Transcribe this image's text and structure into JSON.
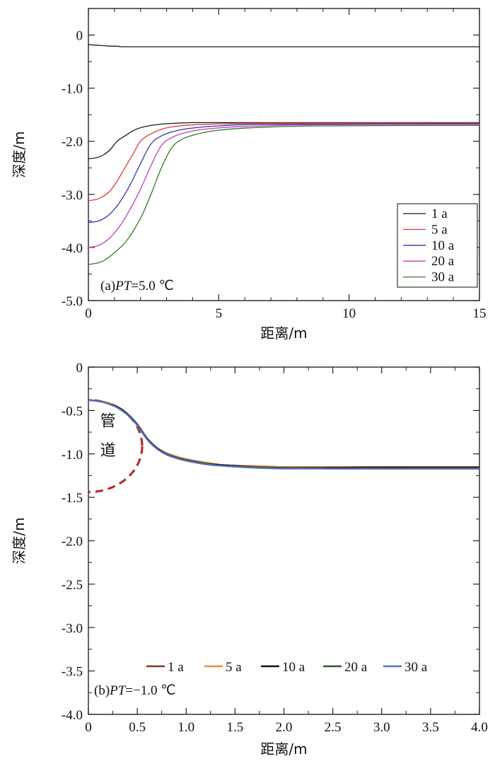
{
  "chart_data": [
    {
      "type": "line",
      "panel_label": "(a)PT=5.0 ℃",
      "panel_label_parts": [
        "(a)",
        "PT",
        "=5.0 ℃"
      ],
      "xlabel": "距离/m",
      "ylabel": "深度/m",
      "xlim": [
        0,
        15
      ],
      "ylim": [
        -5.0,
        0.5
      ],
      "x_ticks": [
        0,
        5,
        10,
        15
      ],
      "x_tick_labels": [
        "0",
        "5",
        "10",
        "15"
      ],
      "y_ticks": [
        0,
        -1.0,
        -2.0,
        -3.0,
        -4.0,
        -5.0
      ],
      "y_tick_labels": [
        "0",
        "-1.0",
        "-2.0",
        "-3.0",
        "-4.0",
        "-5.0"
      ],
      "grid": false,
      "legend_position": "bottom-right",
      "series": [
        {
          "name": "1 a",
          "color": "#1a1a1a",
          "x": [
            0,
            0.3,
            0.6,
            0.9,
            1.1,
            1.3,
            2,
            4,
            8,
            15
          ],
          "y": [
            -0.18,
            -0.19,
            -0.2,
            -0.21,
            -0.21,
            -0.22,
            -0.22,
            -0.22,
            -0.22,
            -0.22
          ]
        },
        {
          "name": "1 a",
          "color": "#1a1a1a",
          "x": [
            0,
            0.3,
            0.6,
            0.85,
            1.1,
            1.4,
            1.8,
            2.3,
            3,
            4,
            6,
            10,
            15
          ],
          "y": [
            -2.33,
            -2.31,
            -2.25,
            -2.15,
            -2.0,
            -1.9,
            -1.78,
            -1.71,
            -1.67,
            -1.65,
            -1.65,
            -1.65,
            -1.65
          ]
        },
        {
          "name": "5 a",
          "color": "#e03a3a",
          "x": [
            0,
            0.4,
            0.8,
            1.1,
            1.4,
            1.7,
            2.0,
            2.4,
            2.9,
            3.5,
            4.5,
            7,
            15
          ],
          "y": [
            -3.12,
            -3.08,
            -2.95,
            -2.75,
            -2.5,
            -2.25,
            -2.0,
            -1.86,
            -1.76,
            -1.71,
            -1.68,
            -1.66,
            -1.66
          ]
        },
        {
          "name": "10 a",
          "color": "#3535a8",
          "x": [
            0,
            0.4,
            0.8,
            1.2,
            1.6,
            2.0,
            2.4,
            2.8,
            3.3,
            4.0,
            5.0,
            7,
            15
          ],
          "y": [
            -3.53,
            -3.5,
            -3.38,
            -3.15,
            -2.82,
            -2.42,
            -2.05,
            -1.9,
            -1.81,
            -1.75,
            -1.71,
            -1.68,
            -1.67
          ]
        },
        {
          "name": "20 a",
          "color": "#c040c0",
          "x": [
            0,
            0.4,
            0.8,
            1.2,
            1.6,
            2.0,
            2.4,
            2.8,
            3.2,
            3.7,
            4.5,
            6,
            9,
            15
          ],
          "y": [
            -4.0,
            -3.96,
            -3.83,
            -3.6,
            -3.28,
            -2.9,
            -2.46,
            -2.08,
            -1.93,
            -1.84,
            -1.77,
            -1.72,
            -1.69,
            -1.68
          ]
        },
        {
          "name": "30 a",
          "color": "#3a7a2a",
          "x": [
            0,
            0.5,
            1.0,
            1.5,
            2.0,
            2.4,
            2.8,
            3.2,
            3.6,
            4.2,
            5.0,
            6.5,
            9,
            15
          ],
          "y": [
            -4.32,
            -4.27,
            -4.1,
            -3.85,
            -3.45,
            -3.0,
            -2.5,
            -2.12,
            -1.96,
            -1.86,
            -1.79,
            -1.74,
            -1.71,
            -1.7
          ]
        }
      ]
    },
    {
      "type": "line",
      "panel_label": "(b)PT=−1.0 ℃",
      "panel_label_parts": [
        "(b)",
        "PT",
        "=−1.0 ℃"
      ],
      "annotation": [
        "管",
        "道"
      ],
      "xlabel": "距离/m",
      "ylabel": "深度/m",
      "xlim": [
        0,
        4.0
      ],
      "ylim": [
        -4.0,
        0
      ],
      "x_ticks": [
        0,
        0.5,
        1.0,
        1.5,
        2.0,
        2.5,
        3.0,
        3.5,
        4.0
      ],
      "x_tick_labels": [
        "0",
        "0.5",
        "1.0",
        "1.5",
        "2.0",
        "2.5",
        "3.0",
        "3.5",
        "4.0"
      ],
      "y_ticks": [
        0,
        -0.5,
        -1.0,
        -1.5,
        -2.0,
        -2.5,
        -3.0,
        -3.5,
        -4.0
      ],
      "y_tick_labels": [
        "0",
        "-0.5",
        "-1.0",
        "-1.5",
        "-2.0",
        "-2.5",
        "-3.0",
        "-3.5",
        "-4.0"
      ],
      "grid": false,
      "legend_position": "bottom",
      "pipe_circle": {
        "center_x": 0,
        "center_y": -0.91,
        "radius_x": 0.55,
        "radius_y": 0.53,
        "color": "#b03030"
      },
      "series": [
        {
          "name": "1 a",
          "color": "#7a3b1e",
          "x": [
            0,
            0.1,
            0.2,
            0.3,
            0.4,
            0.5,
            0.6,
            0.7,
            0.8,
            0.9,
            1.0,
            1.2,
            1.4,
            1.7,
            2.0,
            2.5,
            3.0,
            3.5,
            4.0
          ],
          "y": [
            -0.38,
            -0.39,
            -0.41,
            -0.46,
            -0.54,
            -0.66,
            -0.82,
            -0.93,
            -0.99,
            -1.03,
            -1.06,
            -1.1,
            -1.13,
            -1.14,
            -1.15,
            -1.15,
            -1.15,
            -1.15,
            -1.15
          ]
        },
        {
          "name": "5 a",
          "color": "#f08a3c",
          "x": [
            0,
            0.1,
            0.2,
            0.3,
            0.4,
            0.5,
            0.6,
            0.7,
            0.8,
            0.9,
            1.0,
            1.2,
            1.4,
            1.7,
            2.0,
            2.5,
            3.0,
            3.5,
            4.0
          ],
          "y": [
            -0.38,
            -0.39,
            -0.41,
            -0.46,
            -0.54,
            -0.66,
            -0.82,
            -0.93,
            -0.99,
            -1.03,
            -1.06,
            -1.1,
            -1.13,
            -1.14,
            -1.15,
            -1.15,
            -1.16,
            -1.16,
            -1.16
          ]
        },
        {
          "name": "10 a",
          "color": "#111111",
          "x": [
            0,
            0.1,
            0.2,
            0.3,
            0.4,
            0.5,
            0.6,
            0.7,
            0.8,
            0.9,
            1.0,
            1.2,
            1.4,
            1.7,
            2.0,
            2.5,
            3.0,
            3.5,
            4.0
          ],
          "y": [
            -0.38,
            -0.39,
            -0.42,
            -0.46,
            -0.54,
            -0.66,
            -0.82,
            -0.93,
            -1.0,
            -1.04,
            -1.07,
            -1.11,
            -1.13,
            -1.15,
            -1.16,
            -1.16,
            -1.16,
            -1.16,
            -1.16
          ]
        },
        {
          "name": "20 a",
          "color": "#2f5a2a",
          "x": [
            0,
            0.1,
            0.2,
            0.3,
            0.4,
            0.5,
            0.6,
            0.7,
            0.8,
            0.9,
            1.0,
            1.2,
            1.4,
            1.7,
            2.0,
            2.5,
            3.0,
            3.5,
            4.0
          ],
          "y": [
            -0.38,
            -0.39,
            -0.42,
            -0.47,
            -0.55,
            -0.67,
            -0.83,
            -0.94,
            -1.0,
            -1.04,
            -1.07,
            -1.11,
            -1.14,
            -1.15,
            -1.16,
            -1.17,
            -1.17,
            -1.17,
            -1.17
          ]
        },
        {
          "name": "30 a",
          "color": "#5570c0",
          "x": [
            0,
            0.1,
            0.2,
            0.3,
            0.4,
            0.5,
            0.6,
            0.7,
            0.8,
            0.9,
            1.0,
            1.2,
            1.4,
            1.7,
            2.0,
            2.5,
            3.0,
            3.5,
            4.0
          ],
          "y": [
            -0.38,
            -0.39,
            -0.42,
            -0.47,
            -0.55,
            -0.67,
            -0.83,
            -0.94,
            -1.01,
            -1.05,
            -1.08,
            -1.12,
            -1.14,
            -1.16,
            -1.17,
            -1.17,
            -1.17,
            -1.17,
            -1.17
          ]
        }
      ]
    }
  ]
}
